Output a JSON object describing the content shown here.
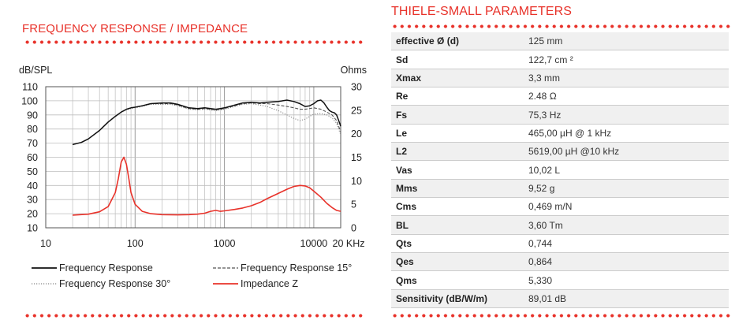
{
  "left_title": "FREQUENCY RESPONSE / IMPEDANCE",
  "right_title": "THIELE-SMALL PARAMETERS",
  "chart_data": {
    "type": "line",
    "x_scale": "log",
    "xlim": [
      10,
      20000
    ],
    "ylim": [
      10,
      110
    ],
    "y2lim": [
      0,
      30
    ],
    "ylabel": "dB/SPL",
    "y2label": "Ohms",
    "x_tick_labels": [
      {
        "x": 10,
        "label": "10"
      },
      {
        "x": 100,
        "label": "100"
      },
      {
        "x": 1000,
        "label": "1000"
      },
      {
        "x": 10000,
        "label": "10000"
      },
      {
        "x": 20000,
        "label": "20 KHz"
      }
    ],
    "y_ticks": [
      10,
      20,
      30,
      40,
      50,
      60,
      70,
      80,
      90,
      100,
      110
    ],
    "y2_ticks": [
      0,
      5,
      10,
      15,
      20,
      25,
      30
    ],
    "grid": true,
    "series": [
      {
        "name": "Frequency Response",
        "axis": "left",
        "color": "#111111",
        "style": "solid",
        "points": [
          [
            20,
            69
          ],
          [
            25,
            70.5
          ],
          [
            30,
            73
          ],
          [
            40,
            79
          ],
          [
            50,
            85
          ],
          [
            60,
            89
          ],
          [
            70,
            92
          ],
          [
            80,
            94
          ],
          [
            90,
            95
          ],
          [
            100,
            95.5
          ],
          [
            120,
            96.5
          ],
          [
            150,
            98
          ],
          [
            200,
            98.5
          ],
          [
            250,
            98.5
          ],
          [
            300,
            97.5
          ],
          [
            400,
            95
          ],
          [
            500,
            94.5
          ],
          [
            600,
            95
          ],
          [
            700,
            94.5
          ],
          [
            800,
            94
          ],
          [
            900,
            94.5
          ],
          [
            1000,
            95
          ],
          [
            1300,
            97
          ],
          [
            1600,
            98.5
          ],
          [
            2000,
            99
          ],
          [
            2500,
            98.5
          ],
          [
            3000,
            99
          ],
          [
            4000,
            99.5
          ],
          [
            5000,
            100.5
          ],
          [
            6000,
            99.5
          ],
          [
            7000,
            98
          ],
          [
            8000,
            96
          ],
          [
            9000,
            96.5
          ],
          [
            10000,
            98
          ],
          [
            11000,
            100
          ],
          [
            12000,
            100.5
          ],
          [
            13000,
            98.5
          ],
          [
            14000,
            95.5
          ],
          [
            15000,
            93
          ],
          [
            16000,
            92
          ],
          [
            17000,
            91.5
          ],
          [
            18000,
            90
          ],
          [
            19000,
            86
          ],
          [
            20000,
            82
          ]
        ]
      },
      {
        "name": "Frequency Response 15°",
        "axis": "left",
        "color": "#555555",
        "style": "dashed",
        "points": [
          [
            20,
            69
          ],
          [
            25,
            70.5
          ],
          [
            30,
            73
          ],
          [
            40,
            79
          ],
          [
            50,
            85
          ],
          [
            60,
            89
          ],
          [
            70,
            92
          ],
          [
            80,
            94
          ],
          [
            90,
            95
          ],
          [
            100,
            95.5
          ],
          [
            120,
            96.5
          ],
          [
            150,
            98
          ],
          [
            200,
            98
          ],
          [
            250,
            98
          ],
          [
            300,
            97
          ],
          [
            400,
            94.5
          ],
          [
            500,
            94
          ],
          [
            600,
            94.5
          ],
          [
            700,
            94
          ],
          [
            800,
            93.5
          ],
          [
            900,
            94
          ],
          [
            1000,
            94.5
          ],
          [
            1300,
            96.5
          ],
          [
            1600,
            98
          ],
          [
            2000,
            98.5
          ],
          [
            2500,
            98
          ],
          [
            3000,
            98
          ],
          [
            4000,
            97
          ],
          [
            5000,
            96
          ],
          [
            6000,
            95
          ],
          [
            7000,
            94
          ],
          [
            8000,
            94
          ],
          [
            9000,
            94.5
          ],
          [
            10000,
            95
          ],
          [
            12000,
            94
          ],
          [
            14000,
            92
          ],
          [
            16000,
            90
          ],
          [
            18000,
            86
          ],
          [
            20000,
            78
          ]
        ]
      },
      {
        "name": "Frequency Response 30°",
        "axis": "left",
        "color": "#888888",
        "style": "dotted",
        "points": [
          [
            20,
            69
          ],
          [
            25,
            70.5
          ],
          [
            30,
            73
          ],
          [
            40,
            79
          ],
          [
            50,
            85
          ],
          [
            60,
            89
          ],
          [
            70,
            92
          ],
          [
            80,
            93.5
          ],
          [
            90,
            94.5
          ],
          [
            100,
            95
          ],
          [
            120,
            96
          ],
          [
            150,
            97.5
          ],
          [
            200,
            97.5
          ],
          [
            250,
            97.5
          ],
          [
            300,
            96.5
          ],
          [
            400,
            94
          ],
          [
            500,
            93.5
          ],
          [
            600,
            94
          ],
          [
            700,
            93.5
          ],
          [
            800,
            93
          ],
          [
            900,
            93.5
          ],
          [
            1000,
            94
          ],
          [
            1300,
            96
          ],
          [
            1600,
            97.5
          ],
          [
            2000,
            98
          ],
          [
            2500,
            97
          ],
          [
            3000,
            96
          ],
          [
            4000,
            93
          ],
          [
            5000,
            90
          ],
          [
            6000,
            87.5
          ],
          [
            7000,
            86
          ],
          [
            8000,
            87
          ],
          [
            9000,
            89
          ],
          [
            10000,
            90.5
          ],
          [
            12000,
            91
          ],
          [
            14000,
            90
          ],
          [
            16000,
            88
          ],
          [
            18000,
            84
          ],
          [
            20000,
            76
          ]
        ]
      },
      {
        "name": "Impedance Z",
        "axis": "right",
        "color": "#e8322a",
        "style": "solid",
        "points": [
          [
            20,
            2.7
          ],
          [
            30,
            2.9
          ],
          [
            40,
            3.4
          ],
          [
            50,
            4.5
          ],
          [
            60,
            7.5
          ],
          [
            65,
            10.5
          ],
          [
            70,
            14
          ],
          [
            75,
            15
          ],
          [
            80,
            13.5
          ],
          [
            85,
            10.5
          ],
          [
            90,
            7.5
          ],
          [
            100,
            5
          ],
          [
            120,
            3.5
          ],
          [
            150,
            3
          ],
          [
            200,
            2.8
          ],
          [
            300,
            2.75
          ],
          [
            400,
            2.8
          ],
          [
            500,
            2.9
          ],
          [
            600,
            3.1
          ],
          [
            700,
            3.5
          ],
          [
            800,
            3.7
          ],
          [
            900,
            3.5
          ],
          [
            1000,
            3.6
          ],
          [
            1300,
            3.9
          ],
          [
            1600,
            4.2
          ],
          [
            2000,
            4.7
          ],
          [
            2500,
            5.4
          ],
          [
            3000,
            6.2
          ],
          [
            4000,
            7.3
          ],
          [
            5000,
            8.2
          ],
          [
            6000,
            8.8
          ],
          [
            7000,
            9.0
          ],
          [
            8000,
            8.9
          ],
          [
            9000,
            8.5
          ],
          [
            10000,
            7.8
          ],
          [
            12000,
            6.5
          ],
          [
            14000,
            5.2
          ],
          [
            16000,
            4.3
          ],
          [
            18000,
            3.7
          ],
          [
            20000,
            3.5
          ]
        ]
      }
    ]
  },
  "legend": [
    {
      "label": "Frequency Response",
      "style": "solid",
      "color": "#111111"
    },
    {
      "label": "Frequency Response 15°",
      "style": "dashed",
      "color": "#555555"
    },
    {
      "label": "Frequency Response 30°",
      "style": "dotted",
      "color": "#888888"
    },
    {
      "label": "Impedance Z",
      "style": "solid",
      "color": "#e8322a"
    }
  ],
  "parameters": [
    {
      "name": "effective Ø (d)",
      "value": "125 mm"
    },
    {
      "name": "Sd",
      "value": "122,7 cm ²"
    },
    {
      "name": "Xmax",
      "value": "3,3 mm"
    },
    {
      "name": "Re",
      "value": "2.48 Ω"
    },
    {
      "name": "Fs",
      "value": "75,3 Hz"
    },
    {
      "name": "Le",
      "value": "465,00 µH @ 1 kHz"
    },
    {
      "name": "L2",
      "value": "5619,00 µH @10 kHz"
    },
    {
      "name": "Vas",
      "value": "10,02 L"
    },
    {
      "name": "Mms",
      "value": "9,52 g"
    },
    {
      "name": "Cms",
      "value": "0,469 m/N"
    },
    {
      "name": "BL",
      "value": "3,60 Tm"
    },
    {
      "name": "Qts",
      "value": "0,744"
    },
    {
      "name": "Qes",
      "value": "0,864"
    },
    {
      "name": "Qms",
      "value": "5,330"
    },
    {
      "name": "Sensitivity (dB/W/m)",
      "value": "89,01 dB"
    }
  ],
  "colors": {
    "accent": "#e8322a",
    "grid": "#bdbdbd",
    "row_shade": "#f0f0f0"
  }
}
